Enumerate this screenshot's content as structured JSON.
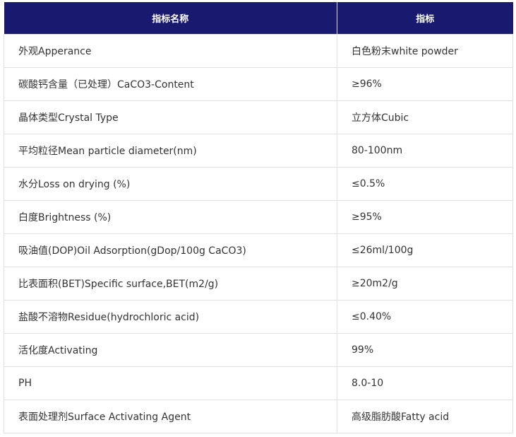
{
  "colors": {
    "header_bg": "#191970",
    "header_text": "#ffffff",
    "border": "#e0e0e0"
  },
  "table": {
    "headers": [
      "指标名称",
      "指标"
    ],
    "rows": [
      [
        "外观Apperance",
        "白色粉末white powder"
      ],
      [
        "碳酸钙含量（已处理）CaCO3-Content",
        "≥96%"
      ],
      [
        "晶体类型Crystal Type",
        "立方体Cubic"
      ],
      [
        "平均粒径Mean particle diameter(nm)",
        "80-100nm"
      ],
      [
        "水分Loss on drying (%)",
        "≤0.5%"
      ],
      [
        "白度Brightness (%)",
        "≥95%"
      ],
      [
        "吸油值(DOP)Oil Adsorption(gDop/100g CaCO3)",
        "≤26ml/100g"
      ],
      [
        "比表面积(BET)Specific surface,BET(m2/g)",
        "≥20m2/g"
      ],
      [
        "盐酸不溶物Residue(hydrochloric acid)",
        "≤0.40%"
      ],
      [
        "活化度Activating",
        "99%"
      ],
      [
        "PH",
        "8.0-10"
      ],
      [
        "表面处理剂Surface Activating Agent",
        "高级脂肪酸Fatty acid"
      ]
    ]
  }
}
